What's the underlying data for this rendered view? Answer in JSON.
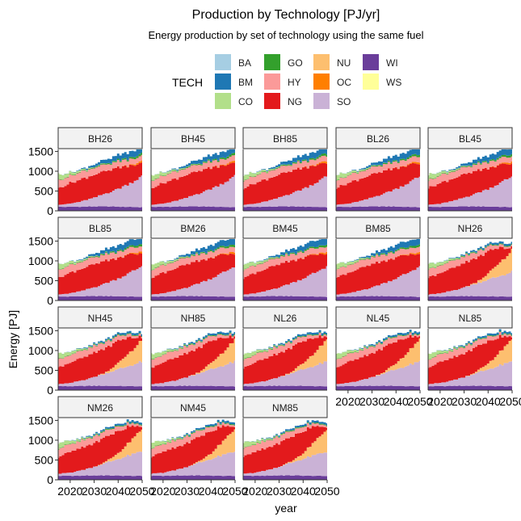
{
  "chart_data": {
    "type": "area",
    "title": "Production by Technology [PJ/yr]",
    "subtitle": "Energy production by set of technology using the same fuel",
    "xlabel": "year",
    "ylabel": "Energy [PJ]",
    "legend_title": "TECH",
    "legend_position": "top",
    "stacked": true,
    "xlim": [
      2015,
      2050
    ],
    "ylim": [
      0,
      1550
    ],
    "x_ticks": [
      2020,
      2030,
      2040,
      2050
    ],
    "y_ticks": [
      0,
      500,
      1000,
      1500
    ],
    "x": [
      2015,
      2020,
      2025,
      2030,
      2035,
      2040,
      2045,
      2050
    ],
    "stack_order": [
      "WI",
      "SO",
      "NU",
      "NG",
      "OC",
      "HY",
      "GO",
      "CO",
      "BM",
      "BA",
      "WS"
    ],
    "technologies": [
      {
        "code": "BA",
        "color": "#a6cee3"
      },
      {
        "code": "BM",
        "color": "#1f78b4"
      },
      {
        "code": "CO",
        "color": "#b2df8a"
      },
      {
        "code": "GO",
        "color": "#33a02c"
      },
      {
        "code": "HY",
        "color": "#fb9a99"
      },
      {
        "code": "NG",
        "color": "#e31a1c"
      },
      {
        "code": "NU",
        "color": "#fdbf6f"
      },
      {
        "code": "OC",
        "color": "#ff7f00"
      },
      {
        "code": "SO",
        "color": "#cab2d6"
      },
      {
        "code": "WI",
        "color": "#6a3d9a"
      },
      {
        "code": "WS",
        "color": "#ffff99"
      }
    ],
    "panel_profiles": {
      "B": {
        "WI": [
          100,
          100,
          105,
          110,
          110,
          105,
          100,
          90
        ],
        "SO": [
          50,
          80,
          140,
          220,
          330,
          450,
          600,
          780
        ],
        "NU": [
          0,
          0,
          0,
          0,
          0,
          0,
          0,
          0
        ],
        "NG": [
          420,
          520,
          560,
          580,
          560,
          530,
          460,
          320
        ],
        "OC": [
          0,
          0,
          0,
          0,
          0,
          5,
          15,
          50
        ],
        "HY": [
          200,
          190,
          180,
          170,
          160,
          150,
          140,
          130
        ],
        "GO": [
          10,
          12,
          15,
          20,
          25,
          30,
          40,
          60
        ],
        "CO": [
          140,
          70,
          30,
          10,
          5,
          0,
          0,
          0
        ],
        "BM": [
          0,
          5,
          20,
          60,
          100,
          130,
          150,
          160
        ],
        "BA": [
          0,
          0,
          0,
          0,
          0,
          0,
          0,
          0
        ],
        "WS": [
          0,
          0,
          0,
          0,
          0,
          0,
          0,
          0
        ]
      },
      "N": {
        "WI": [
          100,
          100,
          105,
          110,
          110,
          105,
          100,
          95
        ],
        "SO": [
          50,
          80,
          140,
          220,
          320,
          420,
          520,
          620
        ],
        "NU": [
          0,
          0,
          0,
          0,
          30,
          150,
          350,
          560
        ],
        "NG": [
          420,
          520,
          560,
          600,
          620,
          560,
          380,
          60
        ],
        "OC": [
          0,
          0,
          0,
          0,
          0,
          0,
          0,
          0
        ],
        "HY": [
          200,
          190,
          180,
          170,
          150,
          120,
          70,
          40
        ],
        "GO": [
          10,
          12,
          15,
          18,
          20,
          20,
          20,
          20
        ],
        "CO": [
          140,
          70,
          30,
          10,
          5,
          0,
          0,
          0
        ],
        "BM": [
          0,
          5,
          15,
          30,
          40,
          45,
          50,
          50
        ],
        "BA": [
          0,
          0,
          0,
          0,
          0,
          0,
          0,
          0
        ],
        "WS": [
          0,
          0,
          0,
          0,
          0,
          0,
          0,
          0
        ]
      }
    },
    "panels": [
      {
        "label": "BH26",
        "profile": "B"
      },
      {
        "label": "BH45",
        "profile": "B"
      },
      {
        "label": "BH85",
        "profile": "B"
      },
      {
        "label": "BL26",
        "profile": "B"
      },
      {
        "label": "BL45",
        "profile": "B"
      },
      {
        "label": "BL85",
        "profile": "B"
      },
      {
        "label": "BM26",
        "profile": "B"
      },
      {
        "label": "BM45",
        "profile": "B"
      },
      {
        "label": "BM85",
        "profile": "B"
      },
      {
        "label": "NH26",
        "profile": "N"
      },
      {
        "label": "NH45",
        "profile": "N"
      },
      {
        "label": "NH85",
        "profile": "N"
      },
      {
        "label": "NL26",
        "profile": "N"
      },
      {
        "label": "NL45",
        "profile": "N"
      },
      {
        "label": "NL85",
        "profile": "N"
      },
      {
        "label": "NM26",
        "profile": "N"
      },
      {
        "label": "NM45",
        "profile": "N"
      },
      {
        "label": "NM85",
        "profile": "N"
      }
    ]
  }
}
